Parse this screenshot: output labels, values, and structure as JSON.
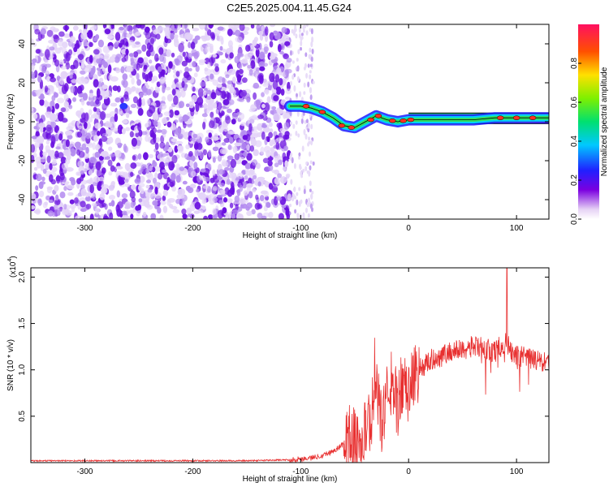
{
  "title": "C2E5.2025.004.11.45.G24",
  "chart_data": [
    {
      "type": "heatmap",
      "xlabel": "Height of straight line (km)",
      "ylabel": "Frequency (Hz)",
      "xlim": [
        -350,
        130
      ],
      "ylim": [
        -50,
        50
      ],
      "xticks": [
        -300,
        -200,
        -100,
        0,
        100
      ],
      "xtick_labels": [
        "-300",
        "-200",
        "-100",
        "0",
        "100"
      ],
      "yticks": [
        -40,
        -20,
        0,
        20,
        40
      ],
      "ytick_labels": [
        "-40",
        "-20",
        "0",
        "20",
        "40"
      ],
      "noise_region_x": [
        -350,
        -110
      ],
      "sparse_region_x": [
        -110,
        -88
      ],
      "signal_trace": {
        "x": [
          -110,
          -100,
          -90,
          -80,
          -70,
          -60,
          -50,
          -40,
          -30,
          -20,
          -10,
          0,
          20,
          40,
          60,
          80,
          90,
          100,
          130
        ],
        "y": [
          8,
          8,
          7,
          5,
          2,
          -2,
          -3,
          0,
          3,
          1,
          0,
          1,
          1,
          1,
          1,
          2,
          2,
          2,
          2
        ]
      },
      "colorbar": {
        "label": "Normalized spectral amplitude",
        "range": [
          0,
          1
        ],
        "ticks": [
          0,
          0.2,
          0.4,
          0.6,
          0.8
        ],
        "tick_labels": [
          "0.0",
          "0.2",
          "0.4",
          "0.6",
          "0.8"
        ]
      },
      "grid": false
    },
    {
      "type": "line",
      "xlabel": "Height of straight line (km)",
      "ylabel": "SNR (10 * v/v)",
      "y_multiplier": "(x10",
      "y_multiplier_exp": "4",
      "y_multiplier_close": ")",
      "xlim": [
        -350,
        130
      ],
      "ylim": [
        0,
        2.1
      ],
      "xticks": [
        -300,
        -200,
        -100,
        0,
        100
      ],
      "xtick_labels": [
        "-300",
        "-200",
        "-100",
        "0",
        "100"
      ],
      "yticks": [
        0.5,
        1.0,
        1.5,
        2.0
      ],
      "ytick_labels": [
        "0.5",
        "1.0",
        "1.5",
        "2.0"
      ],
      "color": "#e83030",
      "series": [
        {
          "x": [
            -350,
            -300,
            -250,
            -200,
            -150,
            -110,
            -100,
            -90,
            -80,
            -70,
            -60,
            -55,
            -50,
            -45,
            -40,
            -35,
            -30,
            -25,
            -20,
            -15,
            -10,
            -5,
            0,
            5,
            10,
            15,
            20,
            30,
            40,
            50,
            60,
            70,
            80,
            85,
            90,
            95,
            100,
            110,
            120,
            130
          ],
          "y": [
            0.02,
            0.02,
            0.02,
            0.02,
            0.02,
            0.03,
            0.04,
            0.05,
            0.08,
            0.12,
            0.2,
            0.3,
            0.25,
            0.18,
            0.35,
            0.5,
            0.75,
            0.45,
            0.7,
            0.85,
            0.6,
            0.9,
            0.75,
            0.95,
            1.0,
            1.05,
            1.1,
            1.15,
            1.2,
            1.22,
            1.25,
            1.23,
            1.2,
            1.25,
            1.3,
            1.2,
            1.15,
            1.12,
            1.1,
            1.05
          ]
        }
      ],
      "grid": false
    }
  ]
}
